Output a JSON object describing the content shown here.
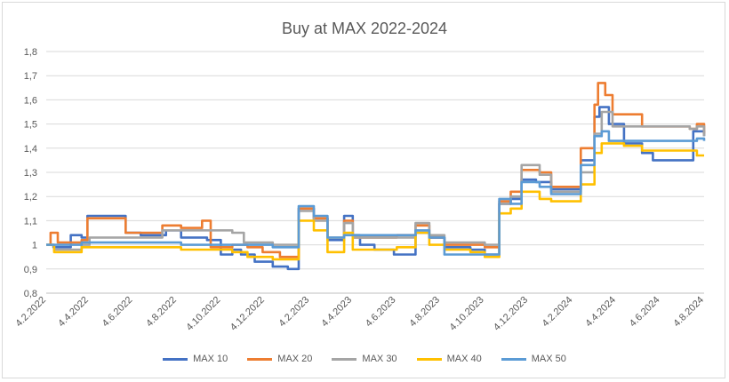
{
  "chart_data": {
    "type": "line",
    "title": "Buy at MAX 2022-2024",
    "xlabel": "",
    "ylabel": "",
    "ylim": [
      0.8,
      1.8
    ],
    "yticks": [
      "0,8",
      "0,9",
      "1",
      "1,1",
      "1,2",
      "1,3",
      "1,4",
      "1,5",
      "1,6",
      "1,7",
      "1,8"
    ],
    "xlim": [
      "2022-02-04",
      "2024-08-04"
    ],
    "xticks": [
      "4.2.2022",
      "4.4.2022",
      "4.6.2022",
      "4.8.2022",
      "4.10.2022",
      "4.12.2022",
      "4.2.2023",
      "4.4.2023",
      "4.6.2023",
      "4.8.2023",
      "4.10.2023",
      "4.12.2023",
      "4.2.2024",
      "4.4.2024",
      "4.6.2024",
      "4.8.2024"
    ],
    "grid": true,
    "legend": "bottom",
    "series": [
      {
        "name": "MAX 10",
        "color": "#4472c4",
        "points": [
          [
            "2022-02-04",
            1.0
          ],
          [
            "2022-02-14",
            0.99
          ],
          [
            "2022-03-10",
            1.04
          ],
          [
            "2022-03-25",
            1.03
          ],
          [
            "2022-04-02",
            1.12
          ],
          [
            "2022-05-25",
            1.05
          ],
          [
            "2022-06-15",
            1.04
          ],
          [
            "2022-07-20",
            1.06
          ],
          [
            "2022-08-10",
            1.03
          ],
          [
            "2022-09-15",
            1.02
          ],
          [
            "2022-10-04",
            0.96
          ],
          [
            "2022-10-20",
            0.98
          ],
          [
            "2022-11-01",
            0.96
          ],
          [
            "2022-11-20",
            0.93
          ],
          [
            "2022-12-15",
            0.91
          ],
          [
            "2023-01-05",
            0.9
          ],
          [
            "2023-01-20",
            1.15
          ],
          [
            "2023-02-10",
            1.11
          ],
          [
            "2023-03-01",
            1.02
          ],
          [
            "2023-03-24",
            1.12
          ],
          [
            "2023-04-05",
            1.04
          ],
          [
            "2023-04-15",
            1.0
          ],
          [
            "2023-05-05",
            0.98
          ],
          [
            "2023-06-01",
            0.96
          ],
          [
            "2023-07-01",
            1.05
          ],
          [
            "2023-07-20",
            1.03
          ],
          [
            "2023-08-10",
            0.99
          ],
          [
            "2023-09-15",
            0.98
          ],
          [
            "2023-10-05",
            0.96
          ],
          [
            "2023-10-25",
            1.17
          ],
          [
            "2023-11-10",
            1.19
          ],
          [
            "2023-11-25",
            1.27
          ],
          [
            "2023-12-15",
            1.26
          ],
          [
            "2024-01-05",
            1.23
          ],
          [
            "2024-02-15",
            1.35
          ],
          [
            "2024-03-05",
            1.53
          ],
          [
            "2024-03-12",
            1.57
          ],
          [
            "2024-03-25",
            1.5
          ],
          [
            "2024-04-15",
            1.42
          ],
          [
            "2024-05-10",
            1.38
          ],
          [
            "2024-05-25",
            1.35
          ],
          [
            "2024-07-05",
            1.35
          ],
          [
            "2024-07-20",
            1.47
          ],
          [
            "2024-08-04",
            1.45
          ]
        ]
      },
      {
        "name": "MAX 20",
        "color": "#ed7d31",
        "points": [
          [
            "2022-02-04",
            1.0
          ],
          [
            "2022-02-10",
            1.05
          ],
          [
            "2022-02-20",
            1.01
          ],
          [
            "2022-03-25",
            1.02
          ],
          [
            "2022-04-02",
            1.11
          ],
          [
            "2022-05-25",
            1.05
          ],
          [
            "2022-06-20",
            1.05
          ],
          [
            "2022-07-15",
            1.08
          ],
          [
            "2022-08-10",
            1.07
          ],
          [
            "2022-09-08",
            1.1
          ],
          [
            "2022-09-20",
            0.99
          ],
          [
            "2022-10-20",
            1.0
          ],
          [
            "2022-11-10",
            0.99
          ],
          [
            "2022-12-01",
            0.97
          ],
          [
            "2022-12-25",
            0.95
          ],
          [
            "2023-01-20",
            1.15
          ],
          [
            "2023-02-10",
            1.11
          ],
          [
            "2023-03-01",
            1.03
          ],
          [
            "2023-03-24",
            1.1
          ],
          [
            "2023-04-05",
            1.03
          ],
          [
            "2023-06-05",
            1.04
          ],
          [
            "2023-07-01",
            1.08
          ],
          [
            "2023-07-20",
            1.03
          ],
          [
            "2023-08-10",
            1.0
          ],
          [
            "2023-09-15",
            1.0
          ],
          [
            "2023-10-05",
            0.99
          ],
          [
            "2023-10-25",
            1.18
          ],
          [
            "2023-11-10",
            1.22
          ],
          [
            "2023-11-25",
            1.31
          ],
          [
            "2023-12-20",
            1.3
          ],
          [
            "2024-01-05",
            1.24
          ],
          [
            "2024-02-15",
            1.4
          ],
          [
            "2024-03-05",
            1.58
          ],
          [
            "2024-03-10",
            1.67
          ],
          [
            "2024-03-20",
            1.62
          ],
          [
            "2024-03-30",
            1.54
          ],
          [
            "2024-05-10",
            1.49
          ],
          [
            "2024-07-15",
            1.48
          ],
          [
            "2024-07-25",
            1.5
          ],
          [
            "2024-08-04",
            1.46
          ]
        ]
      },
      {
        "name": "MAX 30",
        "color": "#a5a5a5",
        "points": [
          [
            "2022-02-04",
            1.0
          ],
          [
            "2022-02-15",
            0.98
          ],
          [
            "2022-03-25",
            1.0
          ],
          [
            "2022-04-05",
            1.03
          ],
          [
            "2022-06-20",
            1.03
          ],
          [
            "2022-07-15",
            1.06
          ],
          [
            "2022-08-10",
            1.06
          ],
          [
            "2022-09-25",
            1.06
          ],
          [
            "2022-10-20",
            1.05
          ],
          [
            "2022-11-05",
            1.01
          ],
          [
            "2022-12-15",
            1.0
          ],
          [
            "2023-01-20",
            1.14
          ],
          [
            "2023-02-10",
            1.1
          ],
          [
            "2023-03-01",
            1.03
          ],
          [
            "2023-03-24",
            1.09
          ],
          [
            "2023-04-05",
            1.03
          ],
          [
            "2023-06-05",
            1.03
          ],
          [
            "2023-07-01",
            1.09
          ],
          [
            "2023-07-20",
            1.04
          ],
          [
            "2023-08-10",
            1.01
          ],
          [
            "2023-09-15",
            1.01
          ],
          [
            "2023-10-05",
            1.0
          ],
          [
            "2023-10-25",
            1.17
          ],
          [
            "2023-11-10",
            1.2
          ],
          [
            "2023-11-25",
            1.33
          ],
          [
            "2023-12-20",
            1.29
          ],
          [
            "2024-01-05",
            1.22
          ],
          [
            "2024-02-15",
            1.3
          ],
          [
            "2024-03-05",
            1.46
          ],
          [
            "2024-03-15",
            1.55
          ],
          [
            "2024-03-30",
            1.49
          ],
          [
            "2024-05-10",
            1.49
          ],
          [
            "2024-07-15",
            1.48
          ],
          [
            "2024-07-25",
            1.49
          ],
          [
            "2024-08-04",
            1.45
          ]
        ]
      },
      {
        "name": "MAX 40",
        "color": "#ffc000",
        "points": [
          [
            "2022-02-04",
            1.0
          ],
          [
            "2022-02-15",
            0.97
          ],
          [
            "2022-03-25",
            0.99
          ],
          [
            "2022-06-20",
            0.99
          ],
          [
            "2022-08-10",
            0.98
          ],
          [
            "2022-09-25",
            0.98
          ],
          [
            "2022-10-20",
            0.97
          ],
          [
            "2022-11-10",
            0.95
          ],
          [
            "2022-12-15",
            0.94
          ],
          [
            "2023-01-20",
            1.1
          ],
          [
            "2023-02-10",
            1.06
          ],
          [
            "2023-03-01",
            0.97
          ],
          [
            "2023-03-24",
            1.05
          ],
          [
            "2023-04-05",
            0.98
          ],
          [
            "2023-06-05",
            0.99
          ],
          [
            "2023-07-01",
            1.05
          ],
          [
            "2023-07-20",
            1.0
          ],
          [
            "2023-08-10",
            0.98
          ],
          [
            "2023-09-15",
            0.97
          ],
          [
            "2023-10-05",
            0.95
          ],
          [
            "2023-10-25",
            1.13
          ],
          [
            "2023-11-10",
            1.15
          ],
          [
            "2023-11-25",
            1.22
          ],
          [
            "2023-12-20",
            1.19
          ],
          [
            "2024-01-05",
            1.18
          ],
          [
            "2024-02-15",
            1.25
          ],
          [
            "2024-03-05",
            1.38
          ],
          [
            "2024-03-15",
            1.42
          ],
          [
            "2024-04-15",
            1.41
          ],
          [
            "2024-05-10",
            1.39
          ],
          [
            "2024-07-15",
            1.39
          ],
          [
            "2024-07-25",
            1.37
          ],
          [
            "2024-08-04",
            1.37
          ]
        ]
      },
      {
        "name": "MAX 50",
        "color": "#5b9bd5",
        "points": [
          [
            "2022-02-04",
            1.0
          ],
          [
            "2022-03-25",
            1.01
          ],
          [
            "2022-06-20",
            1.01
          ],
          [
            "2022-08-10",
            1.0
          ],
          [
            "2022-09-25",
            1.0
          ],
          [
            "2022-10-20",
            1.0
          ],
          [
            "2022-11-10",
            1.0
          ],
          [
            "2022-12-15",
            0.99
          ],
          [
            "2023-01-20",
            1.16
          ],
          [
            "2023-02-10",
            1.12
          ],
          [
            "2023-03-01",
            1.03
          ],
          [
            "2023-03-24",
            1.04
          ],
          [
            "2023-04-05",
            1.04
          ],
          [
            "2023-06-05",
            1.04
          ],
          [
            "2023-07-01",
            1.06
          ],
          [
            "2023-07-20",
            1.03
          ],
          [
            "2023-08-10",
            0.96
          ],
          [
            "2023-09-15",
            0.96
          ],
          [
            "2023-10-05",
            0.96
          ],
          [
            "2023-10-25",
            1.19
          ],
          [
            "2023-11-10",
            1.17
          ],
          [
            "2023-11-25",
            1.26
          ],
          [
            "2023-12-20",
            1.24
          ],
          [
            "2024-01-05",
            1.21
          ],
          [
            "2024-02-15",
            1.33
          ],
          [
            "2024-03-05",
            1.45
          ],
          [
            "2024-03-15",
            1.47
          ],
          [
            "2024-03-25",
            1.43
          ],
          [
            "2024-05-10",
            1.43
          ],
          [
            "2024-07-15",
            1.43
          ],
          [
            "2024-07-25",
            1.44
          ],
          [
            "2024-08-04",
            1.43
          ]
        ]
      }
    ]
  }
}
